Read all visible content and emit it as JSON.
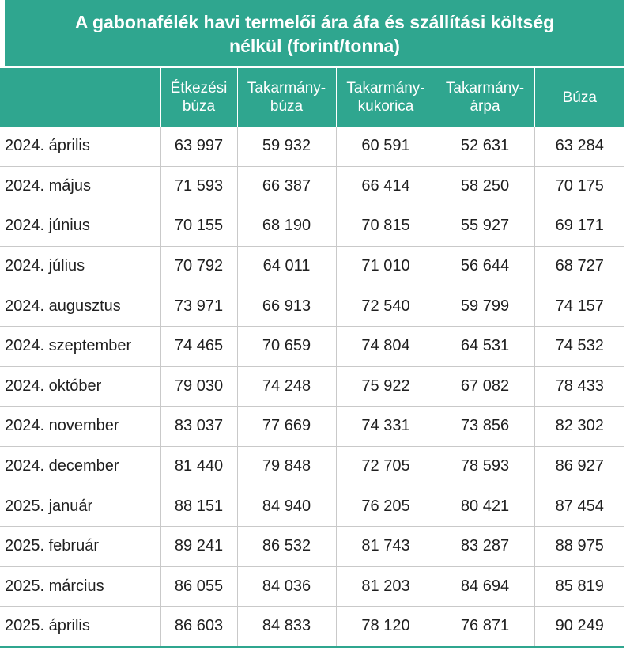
{
  "title": {
    "line1": "A gabonafélék havi termelői ára áfa és szállítási költség",
    "line2": "nélkül (forint/tonna)"
  },
  "columns": [
    {
      "line1": "",
      "line2": ""
    },
    {
      "line1": "Étkezési",
      "line2": "búza"
    },
    {
      "line1": "Takarmány-",
      "line2": "búza"
    },
    {
      "line1": "Takarmány-",
      "line2": "kukorica"
    },
    {
      "line1": "Takarmány-",
      "line2": "árpa"
    },
    {
      "line1": "Búza",
      "line2": ""
    }
  ],
  "rows": [
    [
      "2024. április",
      "63 997",
      "59 932",
      "60 591",
      "52 631",
      "63 284"
    ],
    [
      "2024. május",
      "71 593",
      "66 387",
      "66 414",
      "58 250",
      "70 175"
    ],
    [
      "2024. június",
      "70 155",
      "68 190",
      "70 815",
      "55 927",
      "69 171"
    ],
    [
      "2024. július",
      "70 792",
      "64 011",
      "71 010",
      "56 644",
      "68 727"
    ],
    [
      "2024. augusztus",
      "73 971",
      "66 913",
      "72 540",
      "59 799",
      "74 157"
    ],
    [
      "2024. szeptember",
      "74 465",
      "70 659",
      "74 804",
      "64 531",
      "74 532"
    ],
    [
      "2024. október",
      "79 030",
      "74 248",
      "75 922",
      "67 082",
      "78 433"
    ],
    [
      "2024. november",
      "83 037",
      "77 669",
      "74 331",
      "73 856",
      "82 302"
    ],
    [
      "2024. december",
      "81 440",
      "79 848",
      "72 705",
      "78 593",
      "86 927"
    ],
    [
      "2025. január",
      "88 151",
      "84 940",
      "76 205",
      "80 421",
      "87 454"
    ],
    [
      "2025. február",
      "89 241",
      "86 532",
      "81 743",
      "83 287",
      "88 975"
    ],
    [
      "2025. március",
      "86 055",
      "84 036",
      "81 203",
      "84 694",
      "85 819"
    ],
    [
      "2025. április",
      "86 603",
      "84 833",
      "78 120",
      "76 871",
      "90 249"
    ]
  ],
  "colors": {
    "header": "#2fa68f",
    "grid": "#c9c9c9",
    "text": "#1f1f1f"
  }
}
